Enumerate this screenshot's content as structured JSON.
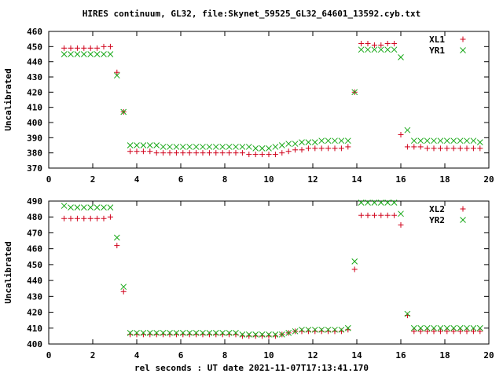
{
  "figure": {
    "title": "HIRES continuum, GL32, file:Skynet_59525_GL32_64601_13592.cyb.txt",
    "xlabel": "rel seconds : UT date 2021-11-07T17:13:41.170"
  },
  "colors": {
    "plus": "#d0001a",
    "cross": "#18a818",
    "frame": "#000000",
    "background": "#ffffff"
  },
  "chart_data": [
    {
      "type": "scatter",
      "panel": "top",
      "title": "",
      "xlabel": "",
      "ylabel": "Uncalibrated",
      "xlim": [
        0,
        20
      ],
      "ylim": [
        370,
        460
      ],
      "xticks": [
        0,
        2,
        4,
        6,
        8,
        10,
        12,
        14,
        16,
        18,
        20
      ],
      "yticks": [
        370,
        380,
        390,
        400,
        410,
        420,
        430,
        440,
        450,
        460
      ],
      "grid": false,
      "legend": "top-right",
      "series": [
        {
          "name": "XL1",
          "marker": "plus",
          "x": [
            0.7,
            1.0,
            1.3,
            1.6,
            1.9,
            2.2,
            2.5,
            2.8,
            3.1,
            3.4,
            3.7,
            4.0,
            4.3,
            4.6,
            4.9,
            5.2,
            5.5,
            5.8,
            6.1,
            6.4,
            6.7,
            7.0,
            7.3,
            7.6,
            7.9,
            8.2,
            8.5,
            8.8,
            9.1,
            9.4,
            9.7,
            10.0,
            10.3,
            10.6,
            10.9,
            11.2,
            11.5,
            11.8,
            12.1,
            12.4,
            12.7,
            13.0,
            13.3,
            13.6,
            13.9,
            14.2,
            14.5,
            14.8,
            15.1,
            15.4,
            15.7,
            16.0,
            16.3,
            16.6,
            16.9,
            17.2,
            17.5,
            17.8,
            18.1,
            18.4,
            18.7,
            19.0,
            19.3,
            19.6
          ],
          "y": [
            449,
            449,
            449,
            449,
            449,
            449,
            450,
            450,
            433,
            407,
            381,
            381,
            381,
            381,
            380,
            380,
            380,
            380,
            380,
            380,
            380,
            380,
            380,
            380,
            380,
            380,
            380,
            380,
            379,
            379,
            379,
            379,
            379,
            380,
            381,
            382,
            382,
            383,
            383,
            383,
            383,
            383,
            383,
            384,
            420,
            452,
            452,
            451,
            451,
            452,
            452,
            392,
            384,
            384,
            384,
            383,
            383,
            383,
            383,
            383,
            383,
            383,
            383,
            383
          ]
        },
        {
          "name": "YR1",
          "marker": "cross",
          "x": [
            0.7,
            1.0,
            1.3,
            1.6,
            1.9,
            2.2,
            2.5,
            2.8,
            3.1,
            3.4,
            3.7,
            4.0,
            4.3,
            4.6,
            4.9,
            5.2,
            5.5,
            5.8,
            6.1,
            6.4,
            6.7,
            7.0,
            7.3,
            7.6,
            7.9,
            8.2,
            8.5,
            8.8,
            9.1,
            9.4,
            9.7,
            10.0,
            10.3,
            10.6,
            10.9,
            11.2,
            11.5,
            11.8,
            12.1,
            12.4,
            12.7,
            13.0,
            13.3,
            13.6,
            13.9,
            14.2,
            14.5,
            14.8,
            15.1,
            15.4,
            15.7,
            16.0,
            16.3,
            16.6,
            16.9,
            17.2,
            17.5,
            17.8,
            18.1,
            18.4,
            18.7,
            19.0,
            19.3,
            19.6
          ],
          "y": [
            445,
            445,
            445,
            445,
            445,
            445,
            445,
            445,
            431,
            407,
            385,
            385,
            385,
            385,
            385,
            384,
            384,
            384,
            384,
            384,
            384,
            384,
            384,
            384,
            384,
            384,
            384,
            384,
            384,
            383,
            383,
            383,
            384,
            385,
            386,
            386,
            387,
            387,
            387,
            388,
            388,
            388,
            388,
            388,
            420,
            448,
            448,
            448,
            448,
            448,
            448,
            443,
            395,
            388,
            388,
            388,
            388,
            388,
            388,
            388,
            388,
            388,
            388,
            387
          ]
        }
      ]
    },
    {
      "type": "scatter",
      "panel": "bottom",
      "title": "",
      "xlabel": "rel seconds : UT date 2021-11-07T17:13:41.170",
      "ylabel": "Uncalibrated",
      "xlim": [
        0,
        20
      ],
      "ylim": [
        400,
        490
      ],
      "xticks": [
        0,
        2,
        4,
        6,
        8,
        10,
        12,
        14,
        16,
        18,
        20
      ],
      "yticks": [
        400,
        410,
        420,
        430,
        440,
        450,
        460,
        470,
        480,
        490
      ],
      "grid": false,
      "legend": "top-right",
      "series": [
        {
          "name": "XL2",
          "marker": "plus",
          "x": [
            0.7,
            1.0,
            1.3,
            1.6,
            1.9,
            2.2,
            2.5,
            2.8,
            3.1,
            3.4,
            3.7,
            4.0,
            4.3,
            4.6,
            4.9,
            5.2,
            5.5,
            5.8,
            6.1,
            6.4,
            6.7,
            7.0,
            7.3,
            7.6,
            7.9,
            8.2,
            8.5,
            8.8,
            9.1,
            9.4,
            9.7,
            10.0,
            10.3,
            10.6,
            10.9,
            11.2,
            11.5,
            11.8,
            12.1,
            12.4,
            12.7,
            13.0,
            13.3,
            13.6,
            13.9,
            14.2,
            14.5,
            14.8,
            15.1,
            15.4,
            15.7,
            16.0,
            16.3,
            16.6,
            16.9,
            17.2,
            17.5,
            17.8,
            18.1,
            18.4,
            18.7,
            19.0,
            19.3,
            19.6
          ],
          "y": [
            479,
            479,
            479,
            479,
            479,
            479,
            479,
            480,
            462,
            433,
            406,
            406,
            406,
            406,
            406,
            406,
            406,
            406,
            406,
            406,
            406,
            406,
            406,
            406,
            406,
            406,
            406,
            405,
            405,
            405,
            405,
            405,
            405,
            406,
            407,
            408,
            408,
            408,
            408,
            408,
            408,
            408,
            408,
            409,
            447,
            481,
            481,
            481,
            481,
            481,
            481,
            475,
            418,
            408,
            408,
            408,
            408,
            408,
            408,
            408,
            408,
            408,
            408,
            408
          ]
        },
        {
          "name": "YR2",
          "marker": "cross",
          "x": [
            0.7,
            1.0,
            1.3,
            1.6,
            1.9,
            2.2,
            2.5,
            2.8,
            3.1,
            3.4,
            3.7,
            4.0,
            4.3,
            4.6,
            4.9,
            5.2,
            5.5,
            5.8,
            6.1,
            6.4,
            6.7,
            7.0,
            7.3,
            7.6,
            7.9,
            8.2,
            8.5,
            8.8,
            9.1,
            9.4,
            9.7,
            10.0,
            10.3,
            10.6,
            10.9,
            11.2,
            11.5,
            11.8,
            12.1,
            12.4,
            12.7,
            13.0,
            13.3,
            13.6,
            13.9,
            14.2,
            14.5,
            14.8,
            15.1,
            15.4,
            15.7,
            16.0,
            16.3,
            16.6,
            16.9,
            17.2,
            17.5,
            17.8,
            18.1,
            18.4,
            18.7,
            19.0,
            19.3,
            19.6
          ],
          "y": [
            487,
            486,
            486,
            486,
            486,
            486,
            486,
            486,
            467,
            436,
            407,
            407,
            407,
            407,
            407,
            407,
            407,
            407,
            407,
            407,
            407,
            407,
            407,
            407,
            407,
            407,
            407,
            406,
            406,
            406,
            406,
            406,
            406,
            406,
            407,
            408,
            409,
            409,
            409,
            409,
            409,
            409,
            409,
            410,
            452,
            489,
            489,
            489,
            489,
            489,
            489,
            482,
            419,
            410,
            410,
            410,
            410,
            410,
            410,
            410,
            410,
            410,
            410,
            410
          ]
        }
      ]
    }
  ]
}
